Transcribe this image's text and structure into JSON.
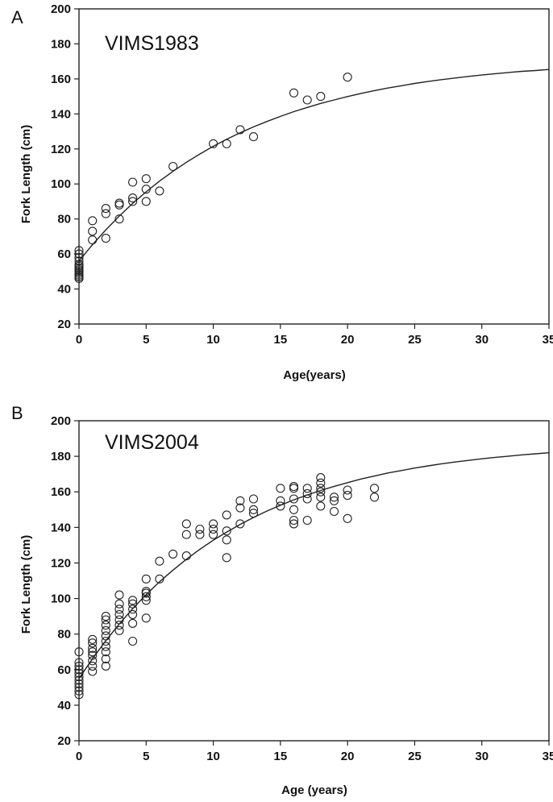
{
  "chart_data": [
    {
      "panel": "A",
      "label": "VIMS1983",
      "type": "scatter",
      "xlabel": "Age(years)",
      "ylabel": "Fork Length (cm)",
      "xlim": [
        0,
        35
      ],
      "ylim": [
        20,
        200
      ],
      "xticks": [
        "0",
        "5",
        "10",
        "15",
        "20",
        "25",
        "30",
        "35"
      ],
      "yticks": [
        "20",
        "40",
        "60",
        "80",
        "100",
        "120",
        "140",
        "160",
        "180",
        "200"
      ],
      "grid": false,
      "legend": "none",
      "series": [
        {
          "type": "scatter",
          "marker": "open-circle",
          "points": [
            [
              0,
              46
            ],
            [
              0,
              47
            ],
            [
              0,
              48
            ],
            [
              0,
              49
            ],
            [
              0,
              50
            ],
            [
              0,
              51
            ],
            [
              0,
              52
            ],
            [
              0,
              53
            ],
            [
              0,
              54
            ],
            [
              0,
              56
            ],
            [
              0,
              58
            ],
            [
              0,
              60
            ],
            [
              0,
              62
            ],
            [
              1,
              68
            ],
            [
              1,
              73
            ],
            [
              1,
              79
            ],
            [
              2,
              69
            ],
            [
              2,
              83
            ],
            [
              2,
              86
            ],
            [
              3,
              80
            ],
            [
              3,
              88
            ],
            [
              3,
              89
            ],
            [
              4,
              90
            ],
            [
              4,
              92
            ],
            [
              4,
              101
            ],
            [
              5,
              90
            ],
            [
              5,
              97
            ],
            [
              5,
              103
            ],
            [
              6,
              96
            ],
            [
              7,
              110
            ],
            [
              10,
              123
            ],
            [
              11,
              123
            ],
            [
              12,
              131
            ],
            [
              13,
              127
            ],
            [
              16,
              152
            ],
            [
              17,
              148
            ],
            [
              18,
              150
            ],
            [
              20,
              161
            ]
          ]
        },
        {
          "type": "line",
          "curve": "fitted",
          "x": [
            0,
            1,
            2,
            3,
            4,
            5,
            6,
            7,
            8,
            9,
            10,
            11,
            12,
            13,
            14,
            15,
            16,
            17,
            18,
            19,
            20,
            21,
            22,
            23,
            24,
            25,
            26,
            27,
            28,
            29,
            30,
            31,
            32,
            33,
            34,
            35
          ],
          "y": [
            56,
            65.3,
            73.8,
            81.7,
            88.9,
            95.5,
            101.6,
            107.2,
            112.4,
            117.1,
            121.5,
            125.5,
            129.2,
            132.6,
            135.7,
            138.6,
            141.3,
            143.7,
            146,
            148,
            149.9,
            151.7,
            153.3,
            154.8,
            156.1,
            157.4,
            158.5,
            159.6,
            160.5,
            161.4,
            162.2,
            163,
            163.7,
            164.3,
            164.8,
            165.4
          ]
        }
      ]
    },
    {
      "panel": "B",
      "label": "VIMS2004",
      "type": "scatter",
      "xlabel": "Age (years)",
      "ylabel": "Fork Length (cm)",
      "xlim": [
        0,
        35
      ],
      "ylim": [
        20,
        200
      ],
      "xticks": [
        "0",
        "5",
        "10",
        "15",
        "20",
        "25",
        "30",
        "35"
      ],
      "yticks": [
        "20",
        "40",
        "60",
        "80",
        "100",
        "120",
        "140",
        "160",
        "180",
        "200"
      ],
      "grid": false,
      "legend": "none",
      "series": [
        {
          "type": "scatter",
          "marker": "open-circle",
          "points": [
            [
              0,
              46
            ],
            [
              0,
              48
            ],
            [
              0,
              50
            ],
            [
              0,
              52
            ],
            [
              0,
              54
            ],
            [
              0,
              56
            ],
            [
              0,
              58
            ],
            [
              0,
              60
            ],
            [
              0,
              62
            ],
            [
              0,
              64
            ],
            [
              0,
              70
            ],
            [
              1,
              59
            ],
            [
              1,
              62
            ],
            [
              1,
              65
            ],
            [
              1,
              68
            ],
            [
              1,
              70
            ],
            [
              1,
              72
            ],
            [
              1,
              75
            ],
            [
              1,
              77
            ],
            [
              2,
              62
            ],
            [
              2,
              66
            ],
            [
              2,
              70
            ],
            [
              2,
              73
            ],
            [
              2,
              76
            ],
            [
              2,
              79
            ],
            [
              2,
              82
            ],
            [
              2,
              85
            ],
            [
              2,
              88
            ],
            [
              2,
              90
            ],
            [
              3,
              82
            ],
            [
              3,
              85
            ],
            [
              3,
              88
            ],
            [
              3,
              91
            ],
            [
              3,
              94
            ],
            [
              3,
              97
            ],
            [
              3,
              102
            ],
            [
              4,
              76
            ],
            [
              4,
              86
            ],
            [
              4,
              91
            ],
            [
              4,
              94
            ],
            [
              4,
              97
            ],
            [
              4,
              99
            ],
            [
              5,
              89
            ],
            [
              5,
              99
            ],
            [
              5,
              101
            ],
            [
              5,
              103
            ],
            [
              5,
              104
            ],
            [
              5,
              111
            ],
            [
              6,
              111
            ],
            [
              6,
              121
            ],
            [
              7,
              125
            ],
            [
              8,
              124
            ],
            [
              8,
              136
            ],
            [
              8,
              142
            ],
            [
              9,
              136
            ],
            [
              9,
              139
            ],
            [
              10,
              136
            ],
            [
              10,
              139
            ],
            [
              10,
              142
            ],
            [
              11,
              123
            ],
            [
              11,
              133
            ],
            [
              11,
              138
            ],
            [
              11,
              147
            ],
            [
              12,
              142
            ],
            [
              12,
              151
            ],
            [
              12,
              155
            ],
            [
              13,
              148
            ],
            [
              13,
              150
            ],
            [
              13,
              156
            ],
            [
              15,
              152
            ],
            [
              15,
              155
            ],
            [
              15,
              162
            ],
            [
              16,
              142
            ],
            [
              16,
              144
            ],
            [
              16,
              150
            ],
            [
              16,
              156
            ],
            [
              16,
              162
            ],
            [
              16,
              163
            ],
            [
              17,
              144
            ],
            [
              17,
              156
            ],
            [
              17,
              159
            ],
            [
              17,
              162
            ],
            [
              18,
              152
            ],
            [
              18,
              157
            ],
            [
              18,
              160
            ],
            [
              18,
              162
            ],
            [
              18,
              165
            ],
            [
              18,
              168
            ],
            [
              19,
              149
            ],
            [
              19,
              155
            ],
            [
              19,
              157
            ],
            [
              20,
              145
            ],
            [
              20,
              158
            ],
            [
              20,
              161
            ],
            [
              22,
              157
            ],
            [
              22,
              162
            ]
          ]
        },
        {
          "type": "line",
          "curve": "fitted",
          "x": [
            0,
            1,
            2,
            3,
            4,
            5,
            6,
            7,
            8,
            9,
            10,
            11,
            12,
            13,
            14,
            15,
            16,
            17,
            18,
            19,
            20,
            21,
            22,
            23,
            24,
            25,
            26,
            27,
            28,
            29,
            30,
            31,
            32,
            33,
            34,
            35
          ],
          "y": [
            55,
            66.1,
            76.3,
            85.7,
            94.3,
            102.2,
            109.4,
            116,
            122.1,
            127.7,
            132.8,
            137.4,
            141.7,
            145.6,
            149.2,
            152.5,
            155.5,
            158.3,
            160.8,
            163.1,
            165.2,
            167.2,
            168.9,
            170.6,
            172,
            173.4,
            174.6,
            175.8,
            176.8,
            177.7,
            178.6,
            179.4,
            180.1,
            180.8,
            181.4,
            182
          ]
        }
      ]
    }
  ],
  "panels": {
    "a": {
      "letter": "A",
      "label": "VIMS1983"
    },
    "b": {
      "letter": "B",
      "label": "VIMS2004"
    }
  }
}
